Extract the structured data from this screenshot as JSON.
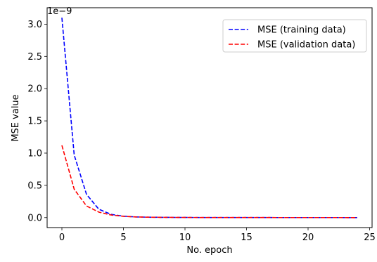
{
  "chart_data": {
    "type": "line",
    "title": "",
    "xlabel": "No. epoch",
    "ylabel": "MSE value",
    "y_offset_label": "1e−9",
    "y_scale_factor": 1e-09,
    "xlim": [
      -1.2,
      25.2
    ],
    "ylim": [
      -0.155,
      3.255
    ],
    "x_ticks": [
      0,
      5,
      10,
      15,
      20,
      25
    ],
    "x_tick_labels": [
      "0",
      "5",
      "10",
      "15",
      "20",
      "25"
    ],
    "y_ticks": [
      0.0,
      0.5,
      1.0,
      1.5,
      2.0,
      2.5,
      3.0
    ],
    "y_tick_labels": [
      "0.0",
      "0.5",
      "1.0",
      "1.5",
      "2.0",
      "2.5",
      "3.0"
    ],
    "grid": false,
    "legend_position": "top-right",
    "x": [
      0,
      1,
      2,
      3,
      4,
      5,
      6,
      7,
      8,
      9,
      10,
      11,
      12,
      13,
      14,
      15,
      16,
      17,
      18,
      19,
      20,
      21,
      22,
      23,
      24
    ],
    "series": [
      {
        "name": "MSE (training data)",
        "color": "#0000ff",
        "line_style": "dashed",
        "values": [
          3.1,
          0.97,
          0.36,
          0.13,
          0.05,
          0.022,
          0.01,
          0.006,
          0.004,
          0.003,
          0.002,
          0.0015,
          0.001,
          0.001,
          0.0008,
          0.0006,
          0.0005,
          0.0004,
          0.0003,
          0.0003,
          0.0002,
          0.0002,
          0.0002,
          0.0001,
          0.0001
        ]
      },
      {
        "name": "MSE (validation data)",
        "color": "#ff0000",
        "line_style": "dashed",
        "values": [
          1.12,
          0.44,
          0.18,
          0.085,
          0.04,
          0.02,
          0.01,
          0.006,
          0.004,
          0.003,
          0.002,
          0.0015,
          0.001,
          0.001,
          0.0008,
          0.0006,
          0.0005,
          0.0004,
          0.0003,
          0.0003,
          0.0002,
          0.0002,
          0.0002,
          0.0001,
          0.0001
        ]
      }
    ]
  }
}
